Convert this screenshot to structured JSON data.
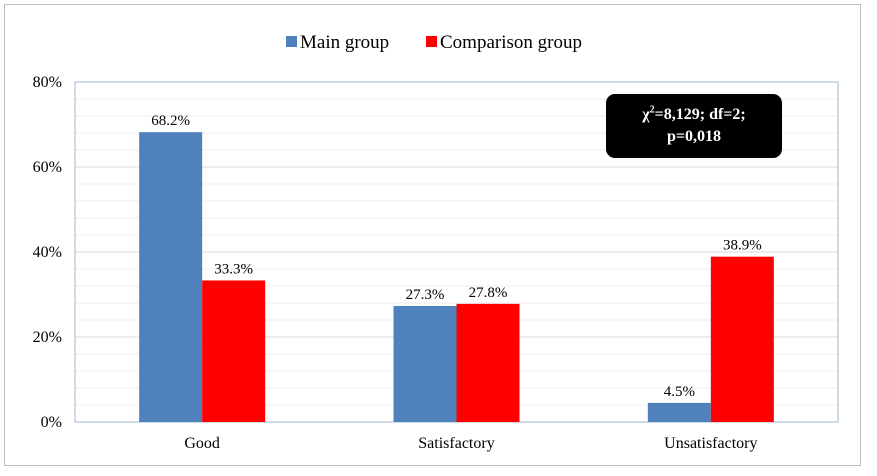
{
  "chart_data": {
    "type": "bar",
    "categories": [
      "Good",
      "Satisfactory",
      "Unsatisfactory"
    ],
    "series": [
      {
        "name": "Main group",
        "values": [
          68.2,
          27.3,
          4.5
        ],
        "color": "#4f81bd"
      },
      {
        "name": "Comparison group",
        "values": [
          33.3,
          27.8,
          38.9
        ],
        "color": "#ff0000"
      }
    ],
    "data_labels": [
      [
        "68.2%",
        "27.3%",
        "4.5%"
      ],
      [
        "33.3%",
        "27.8%",
        "38.9%"
      ]
    ],
    "ylim": [
      0,
      80
    ],
    "yticks": [
      0,
      20,
      40,
      60,
      80
    ],
    "ytick_labels": [
      "0%",
      "20%",
      "40%",
      "60%",
      "80%"
    ],
    "minor_gridlines": true,
    "legend_position": "top-center",
    "xlabel": "",
    "ylabel": "",
    "title": "",
    "annotation": {
      "line1_prefix": "χ",
      "line1_sup": "2",
      "line1_rest": "=8,129; df=2;",
      "line2": "p=0,018"
    },
    "colors": {
      "plot_border": "#9fb7cd",
      "major_grid": "#d9d9d9",
      "minor_grid": "#eeeeee",
      "box_bg": "#000000",
      "box_text": "#ffffff"
    }
  }
}
